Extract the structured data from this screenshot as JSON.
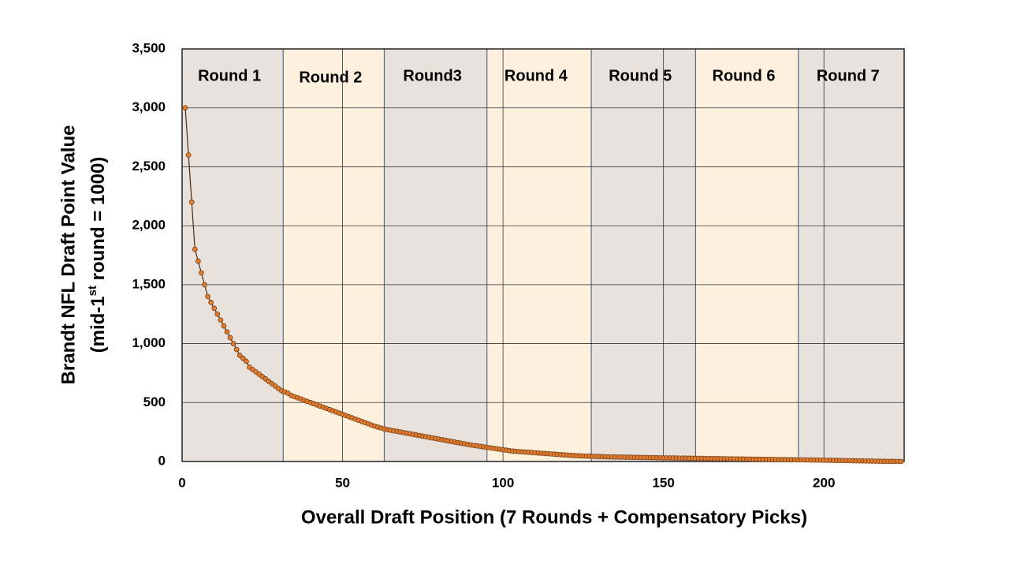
{
  "chart_data": {
    "type": "line",
    "xlabel": "Overall Draft Position (7 Rounds + Compensatory Picks)",
    "ylabel": [
      "Brandt NFL Draft  Point Value",
      "(mid-1",
      "st",
      " round = 1000)"
    ],
    "rounds": [
      {
        "label": "Round 1",
        "start": 0,
        "end": 31.5,
        "color": "#e9e1dc"
      },
      {
        "label": "Round 2",
        "start": 31.5,
        "end": 63,
        "color": "#fdf0dc"
      },
      {
        "label": "Round3",
        "start": 63,
        "end": 95,
        "color": "#e9e1dc"
      },
      {
        "label": "Round 4",
        "start": 95,
        "end": 127.5,
        "color": "#fdf0dc"
      },
      {
        "label": "Round 5",
        "start": 127.5,
        "end": 160,
        "color": "#e9e1dc"
      },
      {
        "label": "Round 6",
        "start": 160,
        "end": 192,
        "color": "#fdf0dc"
      },
      {
        "label": "Round 7",
        "start": 192,
        "end": 225,
        "color": "#e9e1dc"
      }
    ],
    "xlim": [
      0,
      225
    ],
    "xticks": [
      0,
      50,
      100,
      150,
      200
    ],
    "ylim": [
      0,
      3500
    ],
    "yticks": [
      0,
      500,
      {
        "value": 1000,
        "label": "1,000"
      },
      {
        "value": 1500,
        "label": "1,500"
      },
      {
        "value": 2000,
        "label": "2,000"
      },
      {
        "value": 2500,
        "label": "2,500"
      },
      {
        "value": 3000,
        "label": "3,000"
      },
      {
        "value": 3500,
        "label": "3,500"
      }
    ],
    "grid": true,
    "series": [
      {
        "color": "#e07b30",
        "x": [
          1,
          2,
          3,
          4,
          5,
          6,
          7,
          8,
          9,
          10,
          11,
          12,
          13,
          14,
          15,
          16,
          17,
          18,
          19,
          20,
          21,
          22,
          23,
          24,
          25,
          26,
          27,
          28,
          29,
          30,
          31,
          32,
          33,
          34,
          35,
          36,
          37,
          38,
          39,
          40,
          41,
          42,
          43,
          44,
          45,
          46,
          47,
          48,
          49,
          50,
          51,
          52,
          53,
          54,
          55,
          56,
          57,
          58,
          59,
          60,
          61,
          62,
          63,
          64,
          65,
          66,
          67,
          68,
          69,
          70,
          71,
          72,
          73,
          74,
          75,
          76,
          77,
          78,
          79,
          80,
          81,
          82,
          83,
          84,
          85,
          86,
          87,
          88,
          89,
          90,
          91,
          92,
          93,
          94,
          95,
          96,
          97,
          98,
          99,
          100,
          101,
          102,
          103,
          104,
          105,
          106,
          107,
          108,
          109,
          110,
          111,
          112,
          113,
          114,
          115,
          116,
          117,
          118,
          119,
          120,
          121,
          122,
          123,
          124,
          125,
          126,
          127,
          128,
          129,
          130,
          131,
          132,
          133,
          134,
          135,
          136,
          137,
          138,
          139,
          140,
          141,
          142,
          143,
          144,
          145,
          146,
          147,
          148,
          149,
          150,
          151,
          152,
          153,
          154,
          155,
          156,
          157,
          158,
          159,
          160,
          161,
          162,
          163,
          164,
          165,
          166,
          167,
          168,
          169,
          170,
          171,
          172,
          173,
          174,
          175,
          176,
          177,
          178,
          179,
          180,
          181,
          182,
          183,
          184,
          185,
          186,
          187,
          188,
          189,
          190,
          191,
          192,
          193,
          194,
          195,
          196,
          197,
          198,
          199,
          200,
          201,
          202,
          203,
          204,
          205,
          206,
          207,
          208,
          209,
          210,
          211,
          212,
          213,
          214,
          215,
          216,
          217,
          218,
          219,
          220,
          221,
          222,
          223,
          224
        ],
        "values": [
          3000,
          2600,
          2200,
          1800,
          1700,
          1600,
          1500,
          1400,
          1350,
          1300,
          1250,
          1200,
          1150,
          1100,
          1050,
          1000,
          950,
          900,
          875,
          850,
          800,
          780,
          760,
          740,
          720,
          700,
          680,
          660,
          640,
          620,
          600,
          590,
          580,
          560,
          550,
          540,
          530,
          520,
          510,
          500,
          490,
          480,
          470,
          460,
          450,
          440,
          430,
          420,
          410,
          400,
          390,
          380,
          370,
          360,
          350,
          340,
          330,
          320,
          310,
          300,
          292,
          284,
          276,
          270,
          265,
          260,
          255,
          250,
          245,
          240,
          235,
          230,
          225,
          220,
          215,
          210,
          205,
          200,
          195,
          190,
          185,
          180,
          175,
          170,
          165,
          160,
          155,
          150,
          145,
          140,
          136,
          132,
          128,
          124,
          120,
          116,
          112,
          108,
          104,
          100,
          96,
          92,
          88,
          86,
          84,
          82,
          80,
          78,
          76,
          74,
          72,
          70,
          68,
          66,
          64,
          62,
          60,
          58,
          56,
          54,
          52,
          50,
          49,
          48,
          47,
          46,
          45,
          44,
          43,
          42,
          41,
          40,
          39.5,
          39,
          38.5,
          38,
          37.5,
          37,
          36.5,
          36,
          35.5,
          35,
          34.5,
          34,
          33.5,
          33,
          32.5,
          32,
          31.5,
          31,
          30.6,
          30.2,
          29.8,
          29.4,
          29,
          28.6,
          28.2,
          27.8,
          27.4,
          27,
          26.6,
          26.2,
          25.8,
          25.4,
          25,
          24.6,
          24.2,
          23.8,
          23.4,
          23,
          22.6,
          22.2,
          21.8,
          21.4,
          21,
          20.6,
          20.2,
          19.8,
          19.4,
          19,
          18.6,
          18.2,
          17.8,
          17.4,
          17,
          16.6,
          16.2,
          15.8,
          15.4,
          15,
          14.6,
          14.2,
          13.8,
          13.4,
          13,
          12.6,
          12.2,
          11.8,
          11.4,
          11,
          10.5,
          10,
          9.5,
          9,
          8.5,
          8,
          7.5,
          7,
          6.5,
          6,
          5.5,
          5,
          4.5,
          4,
          3.5,
          3,
          2.5,
          2,
          1.5,
          1,
          0.8,
          0.6,
          0.4,
          0.2
        ]
      }
    ]
  }
}
